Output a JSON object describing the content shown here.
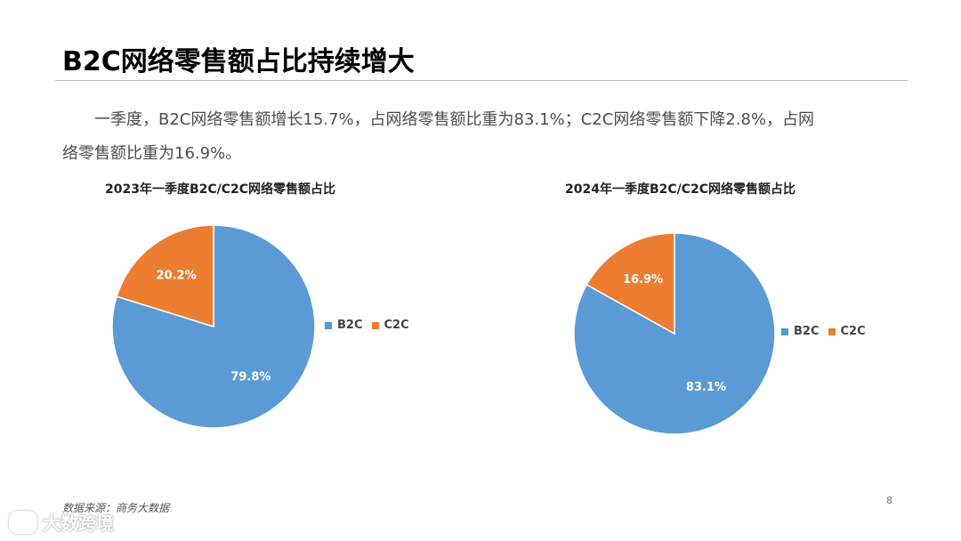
{
  "slide": {
    "title": "B2C网络零售额占比持续增大",
    "paragraph_line1": "一季度，B2C网络零售额增长15.7%，占网络零售额比重为83.1%；C2C网络零售额下降2.8%，占网",
    "paragraph_line2": "络零售额比重为16.9%。",
    "source": "数据来源：商务大数据",
    "page_number": "8",
    "watermark_text": "大数跨境"
  },
  "colors": {
    "b2c": "#5b9bd5",
    "c2c": "#ed7d31"
  },
  "chart_data": [
    {
      "type": "pie",
      "title": "2023年一季度B2C/C2C网络零售额占比",
      "categories": [
        "B2C",
        "C2C"
      ],
      "values": [
        79.8,
        20.2
      ],
      "data_labels": [
        "79.8%",
        "20.2%"
      ],
      "legend": [
        "B2C",
        "C2C"
      ],
      "legend_position": "right"
    },
    {
      "type": "pie",
      "title": "2024年一季度B2C/C2C网络零售额占比",
      "categories": [
        "B2C",
        "C2C"
      ],
      "values": [
        83.1,
        16.9
      ],
      "data_labels": [
        "83.1%",
        "16.9%"
      ],
      "legend": [
        "B2C",
        "C2C"
      ],
      "legend_position": "right"
    }
  ]
}
